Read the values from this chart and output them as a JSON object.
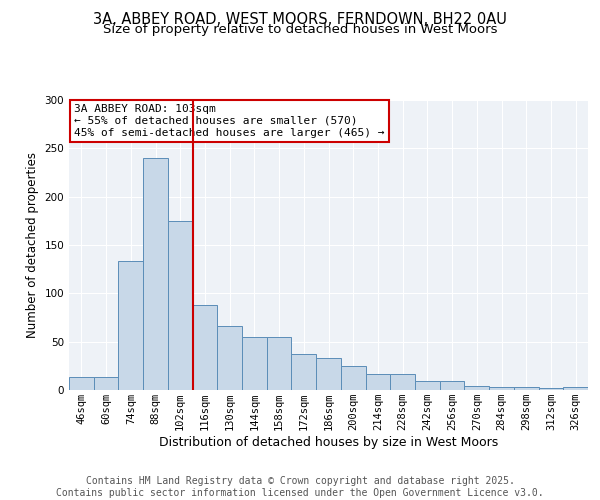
{
  "title_line1": "3A, ABBEY ROAD, WEST MOORS, FERNDOWN, BH22 0AU",
  "title_line2": "Size of property relative to detached houses in West Moors",
  "xlabel": "Distribution of detached houses by size in West Moors",
  "ylabel": "Number of detached properties",
  "categories": [
    "46sqm",
    "60sqm",
    "74sqm",
    "88sqm",
    "102sqm",
    "116sqm",
    "130sqm",
    "144sqm",
    "158sqm",
    "172sqm",
    "186sqm",
    "200sqm",
    "214sqm",
    "228sqm",
    "242sqm",
    "256sqm",
    "270sqm",
    "284sqm",
    "298sqm",
    "312sqm",
    "326sqm"
  ],
  "values": [
    13,
    13,
    133,
    240,
    175,
    88,
    66,
    55,
    55,
    37,
    33,
    25,
    17,
    17,
    9,
    9,
    4,
    3,
    3,
    2,
    3
  ],
  "bar_color": "#c8d8e8",
  "bar_edge_color": "#5b8db8",
  "highlight_index": 4,
  "vline_color": "#cc0000",
  "annotation_text": "3A ABBEY ROAD: 103sqm\n← 55% of detached houses are smaller (570)\n45% of semi-detached houses are larger (465) →",
  "annotation_box_color": "#cc0000",
  "footer_text": "Contains HM Land Registry data © Crown copyright and database right 2025.\nContains public sector information licensed under the Open Government Licence v3.0.",
  "background_color": "#eef2f7",
  "ylim": [
    0,
    300
  ],
  "yticks": [
    0,
    50,
    100,
    150,
    200,
    250,
    300
  ],
  "title_fontsize": 10.5,
  "subtitle_fontsize": 9.5,
  "xlabel_fontsize": 9,
  "ylabel_fontsize": 8.5,
  "tick_fontsize": 7.5,
  "footer_fontsize": 7,
  "annotation_fontsize": 8
}
